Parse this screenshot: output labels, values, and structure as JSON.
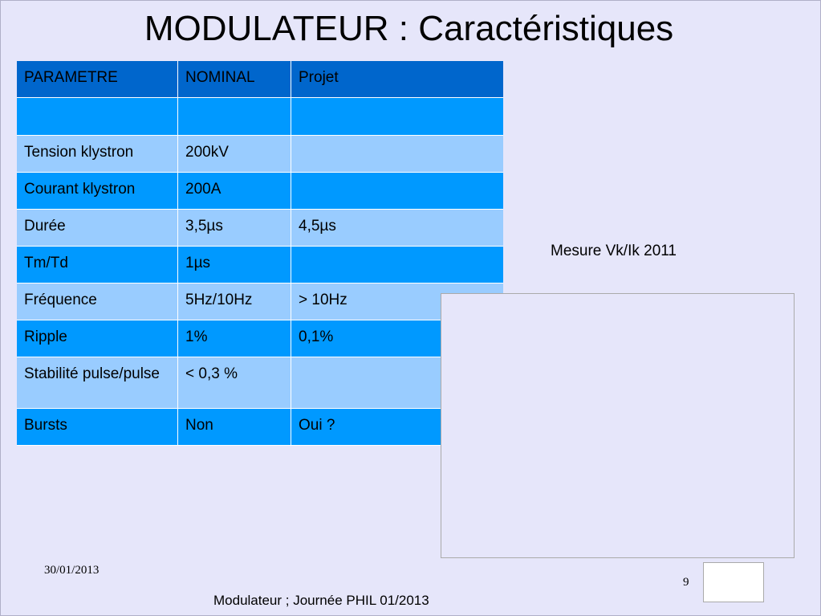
{
  "header": {
    "title": "MODULATEUR : Caractéristiques"
  },
  "table": {
    "columns": [
      "PARAMETRE",
      "NOMINAL",
      "Projet"
    ],
    "rows": [
      [
        "Tension klystron",
        "200kV",
        null
      ],
      [
        "Courant klystron",
        "200A",
        null
      ],
      [
        "Durée",
        "3,5µs",
        "4,5µs"
      ],
      [
        "Tm/Td",
        "1µs",
        null
      ],
      [
        "Fréquence",
        "5Hz/10Hz",
        "> 10Hz"
      ],
      [
        "Ripple",
        "1%",
        "0,1%"
      ],
      [
        "Stabilité pulse/pulse",
        "< 0,3 %",
        null
      ],
      [
        "Bursts",
        "Non",
        "Oui ?"
      ]
    ]
  },
  "caption": "Mesure Vk/Ik  2011",
  "footer": {
    "date": "30/01/2013",
    "text": "Modulateur ; Journée PHIL 01/2013",
    "page": "9"
  }
}
